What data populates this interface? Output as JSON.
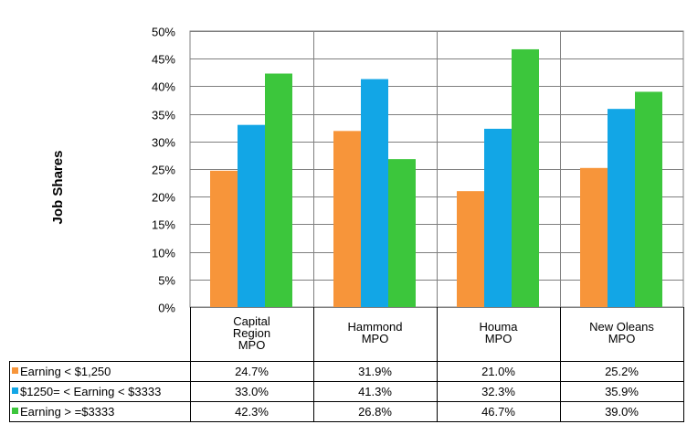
{
  "chart_data": {
    "type": "bar",
    "title": "",
    "xlabel": "",
    "ylabel": "Job Shares",
    "ylim": [
      0,
      50
    ],
    "ytick_step": 5,
    "ytick_labels": [
      "0%",
      "5%",
      "10%",
      "15%",
      "20%",
      "25%",
      "30%",
      "35%",
      "40%",
      "45%",
      "50%"
    ],
    "grid": true,
    "legend": "table-below",
    "categories": [
      [
        "Capital",
        "Region",
        "MPO"
      ],
      [
        "Hammond",
        "MPO"
      ],
      [
        "Houma",
        "MPO"
      ],
      [
        "New Oleans",
        "MPO"
      ]
    ],
    "series": [
      {
        "name": "Earning < $1,250",
        "color": "#F7953A",
        "values": [
          24.7,
          31.9,
          21.0,
          25.2
        ],
        "labels": [
          "24.7%",
          "31.9%",
          "21.0%",
          "25.2%"
        ]
      },
      {
        "name": "$1250= < Earning < $3333",
        "color": "#12A6E6",
        "values": [
          33.0,
          41.3,
          32.3,
          35.9
        ],
        "labels": [
          "33.0%",
          "41.3%",
          "32.3%",
          "35.9%"
        ]
      },
      {
        "name": "Earning > =$3333",
        "color": "#3CC63C",
        "values": [
          42.3,
          26.8,
          46.7,
          39.0
        ],
        "labels": [
          "42.3%",
          "26.8%",
          "46.7%",
          "39.0%"
        ]
      }
    ]
  }
}
